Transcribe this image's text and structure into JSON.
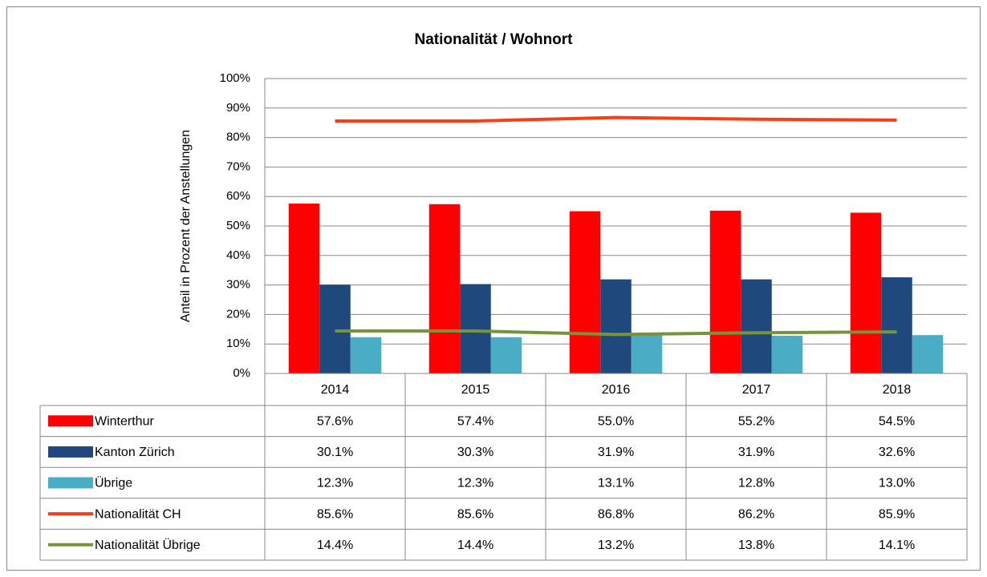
{
  "chart_data": {
    "type": "bar-line-table",
    "title": "Nationalität / Wohnort",
    "y_label": "Anteil in Prozent der Anstellungen",
    "categories": [
      "2014",
      "2015",
      "2016",
      "2017",
      "2018"
    ],
    "ylim": [
      0,
      100
    ],
    "yticks": [
      {
        "value": 0,
        "label": "0%"
      },
      {
        "value": 10,
        "label": "10%"
      },
      {
        "value": 20,
        "label": "20%"
      },
      {
        "value": 30,
        "label": "30%"
      },
      {
        "value": 40,
        "label": "40%"
      },
      {
        "value": 50,
        "label": "50%"
      },
      {
        "value": 60,
        "label": "60%"
      },
      {
        "value": 70,
        "label": "70%"
      },
      {
        "value": 80,
        "label": "80%"
      },
      {
        "value": 90,
        "label": "90%"
      },
      {
        "value": 100,
        "label": "100%"
      }
    ],
    "grid": true,
    "series": [
      {
        "name": "Winterthur",
        "kind": "bar",
        "color": "#ff0000",
        "values": [
          57.6,
          57.4,
          55.0,
          55.2,
          54.5
        ],
        "value_labels": [
          "57.6%",
          "57.4%",
          "55.0%",
          "55.2%",
          "54.5%"
        ]
      },
      {
        "name": "Kanton Zürich",
        "kind": "bar",
        "color": "#1f497d",
        "values": [
          30.1,
          30.3,
          31.9,
          31.9,
          32.6
        ],
        "value_labels": [
          "30.1%",
          "30.3%",
          "31.9%",
          "31.9%",
          "32.6%"
        ]
      },
      {
        "name": "Übrige",
        "kind": "bar",
        "color": "#4bacc6",
        "values": [
          12.3,
          12.3,
          13.1,
          12.8,
          13.0
        ],
        "value_labels": [
          "12.3%",
          "12.3%",
          "13.1%",
          "12.8%",
          "13.0%"
        ]
      },
      {
        "name": "Nationalität CH",
        "kind": "line",
        "color": "#ff3c14",
        "values": [
          85.6,
          85.6,
          86.8,
          86.2,
          85.9
        ],
        "value_labels": [
          "85.6%",
          "85.6%",
          "86.8%",
          "86.2%",
          "85.9%"
        ]
      },
      {
        "name": "Nationalität Übrige",
        "kind": "line",
        "color": "#77933c",
        "values": [
          14.4,
          14.4,
          13.2,
          13.8,
          14.1
        ],
        "value_labels": [
          "14.4%",
          "14.4%",
          "13.2%",
          "13.8%",
          "14.1%"
        ]
      }
    ]
  }
}
